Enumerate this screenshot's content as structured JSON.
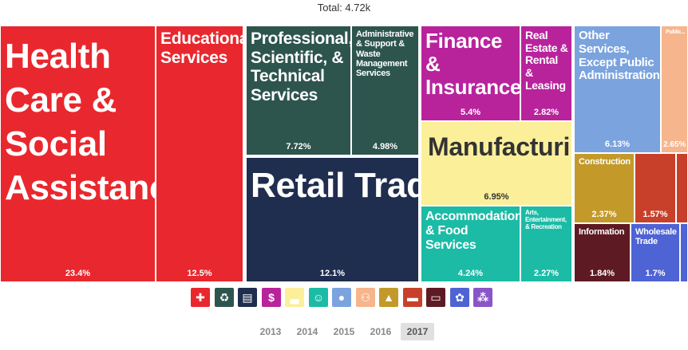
{
  "chart_data": {
    "type": "treemap",
    "title": "Total: 4.72k",
    "items": [
      {
        "name": "Health Care & Social Assistance",
        "value": "23.4%",
        "color": "#e8282e"
      },
      {
        "name": "Educational Services",
        "value": "12.5%",
        "color": "#e8282e"
      },
      {
        "name": "Professional, Scientific, & Technical Services",
        "value": "7.72%",
        "color": "#2d554e"
      },
      {
        "name": "Administrative & Support & Waste Management Services",
        "value": "4.98%",
        "color": "#2d554e"
      },
      {
        "name": "Retail Trade",
        "value": "12.1%",
        "color": "#1f2e4f"
      },
      {
        "name": "Finance & Insurance",
        "value": "5.4%",
        "color": "#b8239c"
      },
      {
        "name": "Real Estate & Rental & Leasing",
        "value": "2.82%",
        "color": "#b8239c"
      },
      {
        "name": "Manufacturing",
        "value": "6.95%",
        "color": "#fbef9a"
      },
      {
        "name": "Accommodation & Food Services",
        "value": "4.24%",
        "color": "#1bbba6"
      },
      {
        "name": "Arts, Entertainment, & Recreation",
        "value": "2.27%",
        "color": "#1bbba6"
      },
      {
        "name": "Other Services, Except Public Administration",
        "value": "6.13%",
        "color": "#7ba3de"
      },
      {
        "name": "Public...",
        "value": "2.65%",
        "color": "#f6b58c"
      },
      {
        "name": "Construction",
        "value": "2.37%",
        "color": "#c39a2a"
      },
      {
        "name": "",
        "value": "1.57%",
        "color": "#c8402a"
      },
      {
        "name": "",
        "value": "",
        "color": "#c8402a"
      },
      {
        "name": "Information",
        "value": "1.84%",
        "color": "#5e1a23"
      },
      {
        "name": "Wholesale Trade",
        "value": "1.7%",
        "color": "#4e63d4"
      },
      {
        "name": "",
        "value": "",
        "color": "#4e63d4"
      }
    ]
  },
  "legend_icons": [
    {
      "icon": "cross-icon",
      "color": "#e8282e"
    },
    {
      "icon": "recycle-icon",
      "color": "#2d554e"
    },
    {
      "icon": "storefront-icon",
      "color": "#1f2e4f"
    },
    {
      "icon": "money-icon",
      "color": "#b8239c"
    },
    {
      "icon": "factory-icon",
      "color": "#fbef9a"
    },
    {
      "icon": "theater-masks-icon",
      "color": "#1bbba6"
    },
    {
      "icon": "person-icon",
      "color": "#7ba3de"
    },
    {
      "icon": "people-icon",
      "color": "#f6b58c"
    },
    {
      "icon": "cone-icon",
      "color": "#c39a2a"
    },
    {
      "icon": "truck-icon",
      "color": "#c8402a"
    },
    {
      "icon": "computer-icon",
      "color": "#5e1a23"
    },
    {
      "icon": "gear-box-icon",
      "color": "#4e63d4"
    },
    {
      "icon": "wheat-icon",
      "color": "#8a55c8"
    }
  ],
  "years": {
    "items": [
      "2013",
      "2014",
      "2015",
      "2016",
      "2017"
    ],
    "selected": "2017"
  }
}
